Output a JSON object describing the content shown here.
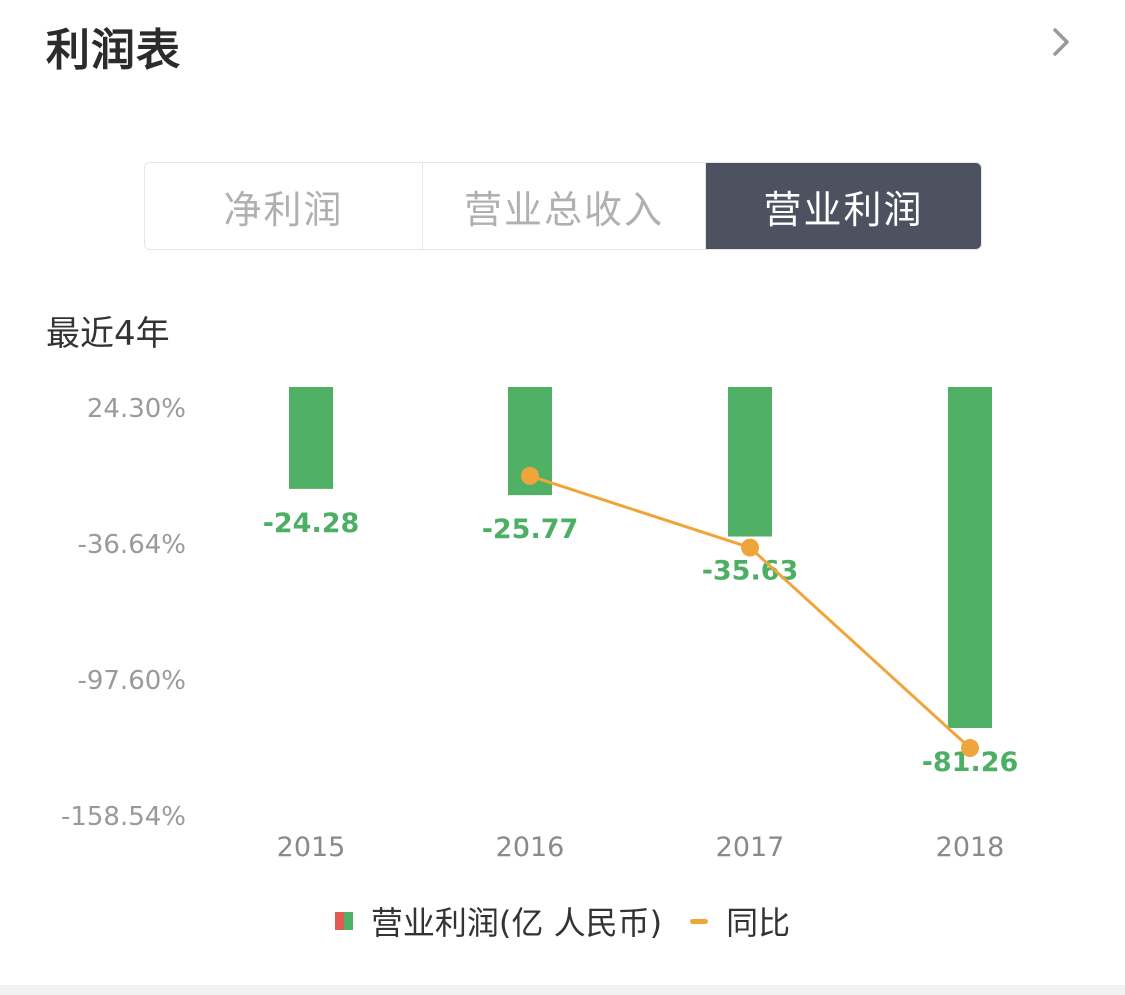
{
  "header": {
    "title": "利润表"
  },
  "tabs": [
    {
      "label": "净利润",
      "active": false
    },
    {
      "label": "营业总收入",
      "active": false
    },
    {
      "label": "营业利润",
      "active": true
    }
  ],
  "period_label": "最近4年",
  "legend": {
    "bar_label": "营业利润(亿 人民币)",
    "line_label": "同比"
  },
  "colors": {
    "positive": "#e05a4f",
    "negative": "#50b065",
    "line": "#f0a53a",
    "active_tab": "#4d5260"
  },
  "chart_data": {
    "type": "bar",
    "categories": [
      "2015",
      "2016",
      "2017",
      "2018"
    ],
    "series": [
      {
        "name": "营业利润(亿 人民币)",
        "type": "bar",
        "values": [
          -24.28,
          -25.77,
          -35.63,
          -81.26
        ]
      },
      {
        "name": "同比",
        "type": "line",
        "values": [
          null,
          -6.14,
          -38.26,
          -128.07
        ]
      }
    ],
    "y_ticks": [
      "24.30%",
      "-36.64%",
      "-97.60%",
      "-158.54%"
    ],
    "y_range": [
      24.3,
      -158.54
    ],
    "data_labels": [
      "-24.28",
      "-25.77",
      "-35.63",
      "-81.26"
    ]
  }
}
